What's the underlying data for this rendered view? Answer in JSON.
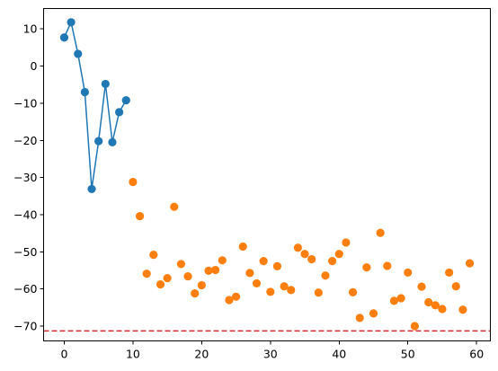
{
  "chart_data": {
    "type": "scatter",
    "title": "",
    "xlabel": "",
    "ylabel": "",
    "xlim": [
      -3,
      62
    ],
    "ylim": [
      -74,
      15.5
    ],
    "xticks": [
      0,
      10,
      20,
      30,
      40,
      50,
      60
    ],
    "yticks": [
      10,
      0,
      -10,
      -20,
      -30,
      -40,
      -50,
      -60,
      -70
    ],
    "grid": false,
    "legend": "none",
    "series": [
      {
        "style": "line-markers",
        "color": "#1f77b4",
        "x": [
          0,
          1,
          2,
          3,
          4,
          5,
          6,
          7,
          8,
          9
        ],
        "y": [
          7.7,
          11.8,
          3.3,
          -7.0,
          -33.1,
          -20.2,
          -4.8,
          -20.5,
          -12.4,
          -9.2
        ]
      },
      {
        "style": "markers",
        "color": "#ff7f0e",
        "x": [
          10,
          11,
          12,
          13,
          14,
          15,
          16,
          17,
          18,
          19,
          20,
          21,
          22,
          23,
          24,
          25,
          26,
          27,
          28,
          29,
          30,
          31,
          32,
          33,
          34,
          35,
          36,
          37,
          38,
          39,
          40,
          41,
          42,
          43,
          44,
          45,
          46,
          47,
          48,
          49,
          50,
          51,
          52,
          53,
          54,
          55,
          56,
          57,
          58,
          59
        ],
        "y": [
          -31.2,
          -40.4,
          -55.9,
          -50.8,
          -58.8,
          -57.1,
          -37.9,
          -53.3,
          -56.6,
          -61.2,
          -59.0,
          -55.1,
          -54.9,
          -52.3,
          -63.0,
          -62.1,
          -48.6,
          -55.7,
          -58.5,
          -52.5,
          -60.8,
          -53.9,
          -59.3,
          -60.3,
          -48.9,
          -50.6,
          -52.0,
          -61.0,
          -56.4,
          -52.5,
          -50.6,
          -47.5,
          -60.9,
          -67.8,
          -54.2,
          -66.6,
          -44.9,
          -53.8,
          -63.2,
          -62.5,
          -55.6,
          -70.0,
          -59.4,
          -63.6,
          -64.4,
          -65.4,
          -55.6,
          -59.3,
          -65.6,
          -53.1
        ]
      }
    ],
    "reference_lines": [
      {
        "orientation": "horizontal",
        "y": -71.3,
        "color": "#d62728",
        "style": "dashed"
      }
    ]
  }
}
